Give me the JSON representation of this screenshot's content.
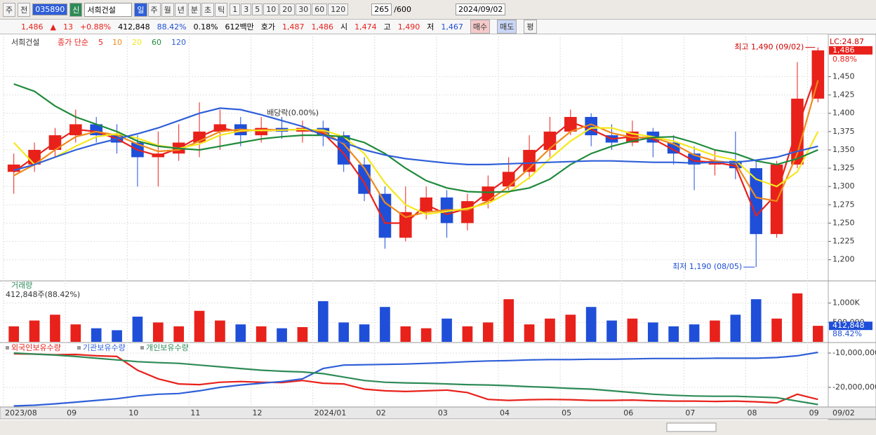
{
  "toolbar": {
    "market": "주",
    "prev": "전",
    "code": "035890",
    "tag": "신",
    "name": "서희건설",
    "periods": [
      "일",
      "주",
      "월",
      "년",
      "분",
      "초",
      "틱"
    ],
    "intervals": [
      "1",
      "3",
      "5",
      "10",
      "20",
      "30",
      "60",
      "120"
    ],
    "count": "265",
    "max": "/600",
    "date": "2024/09/02"
  },
  "info": {
    "price": "1,486",
    "arrow": "▲",
    "change": "13",
    "rate": "+0.88%",
    "volume": "412,848",
    "vol_rate": "88.42%",
    "turnover": "0.18%",
    "amount": "612백만",
    "quote_label": "호가",
    "ask": "1,487",
    "bid": "1,486",
    "open_label": "시",
    "open": "1,474",
    "high_label": "고",
    "high": "1,490",
    "low_label": "저",
    "low": "1,467",
    "buy": "매수",
    "sell": "매도",
    "avg": "평"
  },
  "chart_data": [
    {
      "type": "candlestick",
      "legend_label": "서희건설",
      "ma_label": "종가 단순",
      "categories": [
        "2023/08",
        null,
        null,
        "09",
        null,
        null,
        "10",
        null,
        null,
        "11",
        null,
        null,
        "12",
        null,
        null,
        "2024/01",
        null,
        null,
        "02",
        null,
        null,
        "03",
        null,
        null,
        "04",
        null,
        null,
        "05",
        null,
        null,
        "06",
        null,
        null,
        "07",
        null,
        null,
        "08",
        null,
        null,
        "09"
      ],
      "open": [
        1320,
        1330,
        1350,
        1370,
        1385,
        1370,
        1360,
        1340,
        1345,
        1360,
        1375,
        1385,
        1370,
        1380,
        1375,
        1380,
        1370,
        1330,
        1290,
        1230,
        1265,
        1285,
        1250,
        1280,
        1300,
        1320,
        1350,
        1375,
        1395,
        1370,
        1360,
        1375,
        1360,
        1345,
        1330,
        1335,
        1325,
        1235,
        1330,
        1420
      ],
      "high": [
        1345,
        1360,
        1380,
        1405,
        1395,
        1385,
        1370,
        1375,
        1385,
        1415,
        1405,
        1395,
        1395,
        1395,
        1390,
        1390,
        1375,
        1340,
        1300,
        1300,
        1300,
        1295,
        1290,
        1315,
        1340,
        1370,
        1395,
        1405,
        1400,
        1385,
        1390,
        1380,
        1370,
        1355,
        1350,
        1375,
        1335,
        1335,
        1470,
        1490
      ],
      "low": [
        1290,
        1320,
        1340,
        1360,
        1360,
        1345,
        1300,
        1300,
        1335,
        1340,
        1350,
        1355,
        1360,
        1365,
        1360,
        1355,
        1320,
        1280,
        1215,
        1225,
        1255,
        1230,
        1240,
        1270,
        1295,
        1310,
        1340,
        1370,
        1355,
        1350,
        1355,
        1340,
        1330,
        1295,
        1315,
        1310,
        1190,
        1230,
        1325,
        1415
      ],
      "close": [
        1330,
        1350,
        1370,
        1385,
        1370,
        1360,
        1340,
        1345,
        1360,
        1375,
        1385,
        1370,
        1380,
        1375,
        1380,
        1370,
        1330,
        1290,
        1230,
        1265,
        1285,
        1250,
        1280,
        1300,
        1320,
        1350,
        1375,
        1395,
        1370,
        1360,
        1375,
        1360,
        1345,
        1330,
        1335,
        1325,
        1235,
        1330,
        1420,
        1486
      ],
      "up_color": "#e8211b",
      "down_color": "#1f4fd8",
      "series": [
        {
          "name": "5",
          "color": "#e8211b",
          "values": [
            1320,
            1340,
            1360,
            1378,
            1375,
            1365,
            1350,
            1342,
            1352,
            1368,
            1380,
            1375,
            1378,
            1377,
            1378,
            1373,
            1345,
            1305,
            1250,
            1250,
            1275,
            1262,
            1270,
            1292,
            1312,
            1340,
            1365,
            1388,
            1378,
            1365,
            1368,
            1365,
            1350,
            1335,
            1333,
            1328,
            1260,
            1290,
            1380,
            1460
          ]
        },
        {
          "name": "10",
          "color": "#f08a1c",
          "values": [
            1315,
            1330,
            1350,
            1368,
            1375,
            1370,
            1358,
            1348,
            1350,
            1362,
            1375,
            1378,
            1376,
            1377,
            1378,
            1375,
            1358,
            1325,
            1278,
            1258,
            1265,
            1268,
            1268,
            1280,
            1300,
            1325,
            1352,
            1375,
            1385,
            1373,
            1367,
            1367,
            1358,
            1343,
            1335,
            1332,
            1285,
            1280,
            1345,
            1445
          ]
        },
        {
          "name": "20",
          "color": "#f5e81c",
          "values": [
            1360,
            1330,
            1340,
            1355,
            1368,
            1372,
            1366,
            1356,
            1352,
            1358,
            1370,
            1376,
            1377,
            1377,
            1378,
            1377,
            1368,
            1345,
            1305,
            1275,
            1262,
            1266,
            1270,
            1277,
            1292,
            1312,
            1338,
            1362,
            1380,
            1380,
            1372,
            1368,
            1362,
            1352,
            1342,
            1336,
            1310,
            1300,
            1320,
            1375
          ]
        },
        {
          "name": "60",
          "color": "#1f8a3a",
          "values": [
            1440,
            1430,
            1410,
            1395,
            1385,
            1375,
            1362,
            1355,
            1352,
            1350,
            1355,
            1360,
            1365,
            1368,
            1370,
            1370,
            1368,
            1360,
            1345,
            1325,
            1308,
            1298,
            1293,
            1292,
            1293,
            1298,
            1310,
            1330,
            1345,
            1355,
            1362,
            1367,
            1368,
            1360,
            1350,
            1345,
            1335,
            1330,
            1338,
            1350
          ]
        },
        {
          "name": "120",
          "color": "#2f5fd8",
          "values": [
            1322,
            1330,
            1340,
            1350,
            1358,
            1365,
            1372,
            1380,
            1390,
            1400,
            1407,
            1405,
            1398,
            1390,
            1382,
            1370,
            1360,
            1350,
            1343,
            1338,
            1335,
            1332,
            1330,
            1330,
            1331,
            1332,
            1333,
            1334,
            1335,
            1335,
            1334,
            1333,
            1333,
            1332,
            1333,
            1333,
            1336,
            1340,
            1348,
            1355
          ]
        }
      ],
      "ylim": [
        1172,
        1505
      ],
      "yticks": [
        {
          "value": 1200,
          "label": "1,200"
        },
        {
          "value": 1225,
          "label": "1,225"
        },
        {
          "value": 1250,
          "label": "1,250"
        },
        {
          "value": 1275,
          "label": "1,275"
        },
        {
          "value": 1300,
          "label": "1,300"
        },
        {
          "value": 1325,
          "label": "1,325"
        },
        {
          "value": 1350,
          "label": "1,350"
        },
        {
          "value": 1375,
          "label": "1,375"
        },
        {
          "value": 1400,
          "label": "1,400"
        },
        {
          "value": 1425,
          "label": "1,425"
        },
        {
          "value": 1450,
          "label": "1,450"
        }
      ],
      "grid": true,
      "high_note": "최고 1,490 (09/02)",
      "low_note": "최저 1,190 (08/05)",
      "dividend_note": "배당락(0.00%)",
      "lc": "LC:24.87",
      "price_tag": {
        "value": 1486,
        "label": "1,486"
      },
      "change_tag": "0.88%",
      "last_date": "09/02"
    },
    {
      "type": "bar",
      "title": "거래량",
      "subtitle": "412,848주(88.42%)",
      "values": [
        400000,
        550000,
        700000,
        450000,
        350000,
        300000,
        650000,
        500000,
        400000,
        800000,
        550000,
        450000,
        400000,
        350000,
        380000,
        1050000,
        500000,
        450000,
        900000,
        400000,
        350000,
        600000,
        400000,
        500000,
        1100000,
        450000,
        600000,
        700000,
        900000,
        550000,
        600000,
        500000,
        400000,
        450000,
        550000,
        700000,
        1100000,
        600000,
        1250000,
        412848
      ],
      "ylim": [
        0,
        1500000
      ],
      "yticks": [
        {
          "value": 500000,
          "label": "500,000"
        },
        {
          "value": 1000000,
          "label": "1,000K"
        }
      ],
      "last_tag": {
        "value": 412848,
        "label": "412,848"
      },
      "rate_tag": "88.42%"
    },
    {
      "type": "line",
      "series": [
        {
          "name": "외국인보유수량",
          "color": "#e8211b",
          "values": [
            -10200000,
            -10300000,
            -10500000,
            -10400000,
            -10800000,
            -11000000,
            -15000000,
            -17500000,
            -19000000,
            -19200000,
            -18500000,
            -18300000,
            -18500000,
            -18600000,
            -18000000,
            -18800000,
            -19000000,
            -20500000,
            -21000000,
            -21200000,
            -21000000,
            -20800000,
            -21500000,
            -23500000,
            -23800000,
            -23600000,
            -23500000,
            -23600000,
            -23800000,
            -23800000,
            -23700000,
            -23900000,
            -24000000,
            -24000000,
            -24100000,
            -24000000,
            -24200000,
            -24500000,
            -22000000,
            -23500000
          ]
        },
        {
          "name": "기관보유수량",
          "color": "#2f5fd8",
          "values": [
            -25400000,
            -25200000,
            -24800000,
            -24300000,
            -23800000,
            -23300000,
            -22500000,
            -22000000,
            -21800000,
            -21000000,
            -20000000,
            -19300000,
            -18800000,
            -18300000,
            -17500000,
            -14500000,
            -13500000,
            -13400000,
            -13300000,
            -13200000,
            -13000000,
            -12800000,
            -12500000,
            -12300000,
            -12200000,
            -12000000,
            -11900000,
            -11900000,
            -11800000,
            -11800000,
            -11700000,
            -11600000,
            -11600000,
            -11600000,
            -11500000,
            -11500000,
            -11500000,
            -11300000,
            -10800000,
            -9800000
          ]
        },
        {
          "name": "개인보유수량",
          "color": "#2e8b57",
          "values": [
            -10000000,
            -10300000,
            -10600000,
            -11000000,
            -11500000,
            -12000000,
            -12500000,
            -12800000,
            -13000000,
            -13500000,
            -14000000,
            -14500000,
            -15000000,
            -15300000,
            -15500000,
            -16000000,
            -17000000,
            -18000000,
            -18500000,
            -18700000,
            -18800000,
            -19000000,
            -19200000,
            -19300000,
            -19500000,
            -19800000,
            -20000000,
            -20300000,
            -20500000,
            -21000000,
            -21500000,
            -22000000,
            -22300000,
            -22500000,
            -22600000,
            -22600000,
            -22800000,
            -23000000,
            -24000000,
            -25000000
          ]
        }
      ],
      "ylim": [
        -25510000,
        -7550000
      ],
      "yticks": [
        {
          "value": -20000000,
          "label": "-20,000,000"
        },
        {
          "value": -10000000,
          "label": "-10,000,000"
        }
      ]
    }
  ]
}
